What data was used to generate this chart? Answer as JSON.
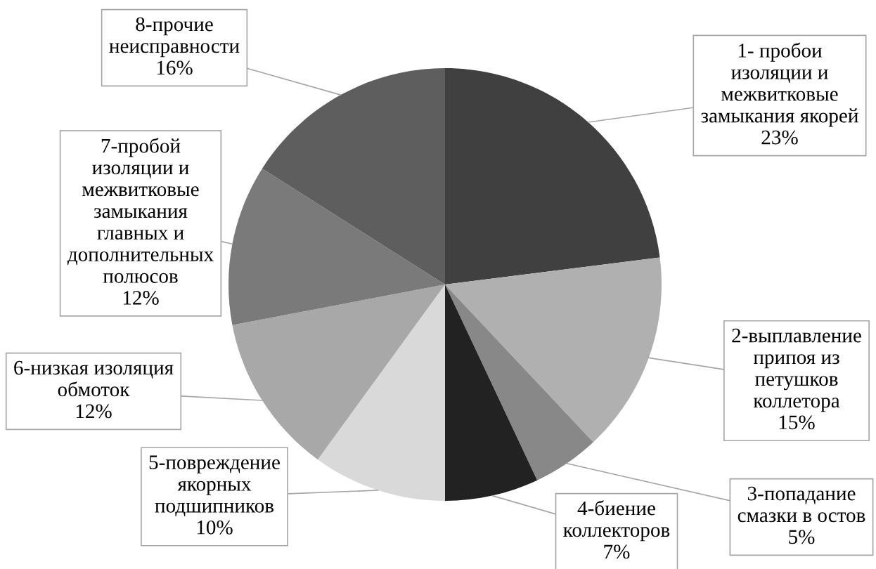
{
  "chart_data": {
    "type": "pie",
    "categories": [
      "1- пробои\nизоляции и\nмежвитковые\nзамыкания якорей",
      "2-выплавление\nприпоя из\nпетушков\nколлетора",
      "3-попадание\nсмазки в остов",
      "4-биение\nколлекторов",
      "5-повреждение\nякорных\nподшипников",
      "6-низкая изоляция\nобмоток",
      "7-пробой\nизоляции и\nмежвитковые\nзамыкания\nглавных и\nдополнительных\nполюсов",
      "8-прочие\nнеисправности"
    ],
    "values": [
      23,
      15,
      5,
      7,
      10,
      12,
      12,
      16
    ],
    "colors": [
      "#404040",
      "#b0b0b0",
      "#888888",
      "#222222",
      "#d9d9d9",
      "#a8a8a8",
      "#7a7a7a",
      "#5e5e5e"
    ],
    "value_labels": [
      "23%",
      "15%",
      "5%",
      "7%",
      "10%",
      "12%",
      "12%",
      "16%"
    ]
  }
}
